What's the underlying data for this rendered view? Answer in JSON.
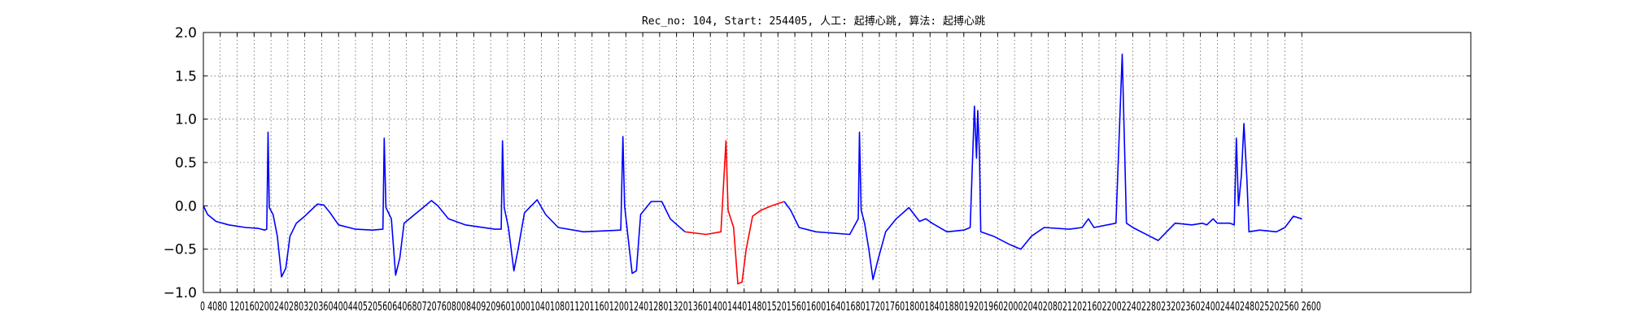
{
  "chart_data": {
    "type": "line",
    "title": "Rec_no: 104, Start: 254405, 人工: 起搏心跳, 算法: 起搏心跳",
    "xlabel": "",
    "ylabel": "",
    "xlim": [
      0,
      3000
    ],
    "ylim": [
      -1.0,
      2.0
    ],
    "grid": true,
    "yticks": [
      -1.0,
      -0.5,
      0.0,
      0.5,
      1.0,
      1.5,
      2.0
    ],
    "ytick_labels": [
      "−1.0",
      "−0.5",
      "0.0",
      "0.5",
      "1.0",
      "1.5",
      "2.0"
    ],
    "xticks": [
      0,
      40,
      80,
      120,
      160,
      200,
      240,
      280,
      320,
      360,
      400,
      440,
      480,
      520,
      560,
      600,
      640,
      680,
      720,
      760,
      800,
      840,
      880,
      920,
      960,
      1000,
      1040,
      1080,
      1120,
      1160,
      1200,
      1240,
      1280,
      1320,
      1360,
      1400,
      1440,
      1480,
      1520,
      1560,
      1600,
      1640,
      1680,
      1720,
      1760,
      1800,
      1840,
      1880,
      1920,
      1960,
      2000,
      2040,
      2080,
      2120,
      2160,
      2200,
      2240,
      2280,
      2320,
      2360,
      2400,
      2440,
      2480,
      2520,
      2560,
      2600
    ],
    "xtick_labels_text": "0 4080 1201602002402803203604004405205606406807207608008409209601000104010801120116012001240128013201360140014401480152015601600164016801720176018001840188019201960200020402080212021602200224022802320236024002440248025202560 2600",
    "series": [
      {
        "color": "#0000ff",
        "points": [
          [
            0,
            0.0
          ],
          [
            10,
            -0.1
          ],
          [
            30,
            -0.18
          ],
          [
            60,
            -0.22
          ],
          [
            100,
            -0.25
          ],
          [
            130,
            -0.26
          ],
          [
            145,
            -0.28
          ],
          [
            150,
            -0.27
          ],
          [
            153,
            0.85
          ],
          [
            156,
            -0.02
          ],
          [
            165,
            -0.1
          ],
          [
            175,
            -0.35
          ],
          [
            185,
            -0.82
          ],
          [
            195,
            -0.72
          ],
          [
            205,
            -0.35
          ],
          [
            220,
            -0.2
          ],
          [
            240,
            -0.12
          ],
          [
            270,
            0.02
          ],
          [
            285,
            0.01
          ],
          [
            300,
            -0.08
          ],
          [
            320,
            -0.22
          ],
          [
            360,
            -0.27
          ],
          [
            400,
            -0.28
          ],
          [
            425,
            -0.27
          ],
          [
            428,
            0.78
          ],
          [
            432,
            -0.02
          ],
          [
            445,
            -0.15
          ],
          [
            455,
            -0.8
          ],
          [
            465,
            -0.6
          ],
          [
            475,
            -0.2
          ],
          [
            500,
            -0.1
          ],
          [
            540,
            0.06
          ],
          [
            555,
            0.0
          ],
          [
            580,
            -0.15
          ],
          [
            620,
            -0.22
          ],
          [
            690,
            -0.27
          ],
          [
            705,
            -0.27
          ],
          [
            708,
            0.75
          ],
          [
            712,
            -0.02
          ],
          [
            722,
            -0.25
          ],
          [
            735,
            -0.75
          ],
          [
            745,
            -0.5
          ],
          [
            760,
            -0.08
          ],
          [
            790,
            0.07
          ],
          [
            810,
            -0.1
          ],
          [
            840,
            -0.25
          ],
          [
            900,
            -0.3
          ],
          [
            988,
            -0.28
          ],
          [
            993,
            0.8
          ],
          [
            997,
            0.0
          ],
          [
            1005,
            -0.35
          ],
          [
            1015,
            -0.78
          ],
          [
            1025,
            -0.75
          ],
          [
            1035,
            -0.1
          ],
          [
            1060,
            0.05
          ],
          [
            1085,
            0.05
          ],
          [
            1105,
            -0.15
          ],
          [
            1140,
            -0.3
          ]
        ]
      },
      {
        "color": "#ff0000",
        "points": [
          [
            1140,
            -0.3
          ],
          [
            1190,
            -0.33
          ],
          [
            1225,
            -0.3
          ],
          [
            1237,
            0.75
          ],
          [
            1242,
            -0.05
          ],
          [
            1255,
            -0.25
          ],
          [
            1265,
            -0.9
          ],
          [
            1275,
            -0.88
          ],
          [
            1285,
            -0.5
          ],
          [
            1300,
            -0.12
          ],
          [
            1320,
            -0.05
          ],
          [
            1345,
            0.0
          ],
          [
            1375,
            0.05
          ]
        ]
      },
      {
        "color": "#0000ff",
        "points": [
          [
            1375,
            0.05
          ],
          [
            1390,
            -0.05
          ],
          [
            1410,
            -0.25
          ],
          [
            1450,
            -0.3
          ],
          [
            1530,
            -0.33
          ],
          [
            1550,
            -0.15
          ],
          [
            1553,
            0.85
          ],
          [
            1557,
            -0.05
          ],
          [
            1565,
            -0.2
          ],
          [
            1575,
            -0.5
          ],
          [
            1585,
            -0.85
          ],
          [
            1598,
            -0.6
          ],
          [
            1615,
            -0.3
          ],
          [
            1640,
            -0.15
          ],
          [
            1670,
            -0.02
          ],
          [
            1695,
            -0.18
          ],
          [
            1710,
            -0.15
          ],
          [
            1725,
            -0.2
          ],
          [
            1760,
            -0.3
          ],
          [
            1800,
            -0.28
          ],
          [
            1815,
            -0.25
          ],
          [
            1825,
            1.15
          ],
          [
            1830,
            0.55
          ],
          [
            1833,
            1.1
          ],
          [
            1837,
            0.6
          ],
          [
            1840,
            -0.3
          ],
          [
            1870,
            -0.35
          ],
          [
            1910,
            -0.45
          ],
          [
            1935,
            -0.5
          ],
          [
            1960,
            -0.35
          ],
          [
            1990,
            -0.25
          ],
          [
            2050,
            -0.27
          ],
          [
            2080,
            -0.25
          ],
          [
            2095,
            -0.15
          ],
          [
            2108,
            -0.25
          ],
          [
            2160,
            -0.2
          ],
          [
            2175,
            1.75
          ],
          [
            2185,
            -0.2
          ],
          [
            2200,
            -0.25
          ],
          [
            2240,
            -0.35
          ],
          [
            2260,
            -0.4
          ],
          [
            2280,
            -0.3
          ],
          [
            2300,
            -0.2
          ],
          [
            2340,
            -0.22
          ],
          [
            2365,
            -0.2
          ],
          [
            2375,
            -0.22
          ],
          [
            2390,
            -0.15
          ],
          [
            2400,
            -0.2
          ],
          [
            2430,
            -0.2
          ],
          [
            2440,
            -0.22
          ],
          [
            2445,
            0.78
          ],
          [
            2450,
            0.0
          ],
          [
            2457,
            0.35
          ],
          [
            2463,
            0.95
          ],
          [
            2470,
            0.3
          ],
          [
            2475,
            -0.3
          ],
          [
            2500,
            -0.28
          ],
          [
            2540,
            -0.3
          ],
          [
            2560,
            -0.25
          ],
          [
            2580,
            -0.12
          ],
          [
            2600,
            -0.15
          ]
        ]
      }
    ]
  }
}
